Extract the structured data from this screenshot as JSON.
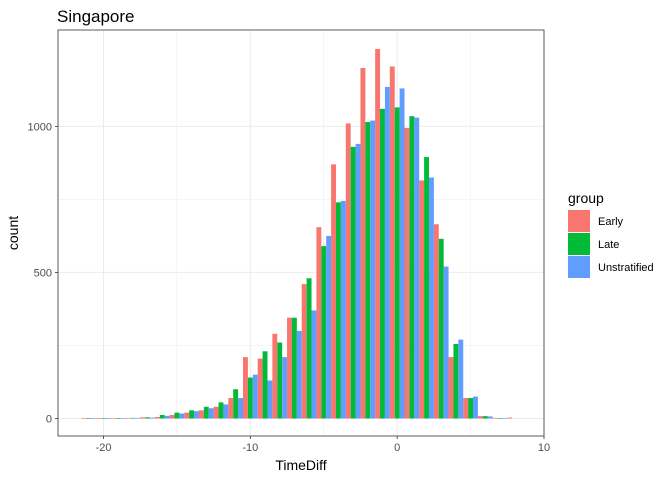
{
  "chart_data": {
    "type": "bar",
    "title": "Singapore",
    "xlabel": "TimeDiff",
    "ylabel": "count",
    "xlim": [
      -23.1,
      10
    ],
    "ylim": [
      -60,
      1330
    ],
    "xticks": [
      -20,
      -10,
      0,
      10
    ],
    "yticks": [
      0,
      500,
      1000
    ],
    "bin_width": 1,
    "grid": true,
    "legend_title": "group",
    "legend_position": "right",
    "x": [
      -21,
      -20,
      -19,
      -18,
      -17,
      -16,
      -15,
      -14,
      -13,
      -12,
      -11,
      -10,
      -9,
      -8,
      -7,
      -6,
      -5,
      -4,
      -3,
      -2,
      -1,
      0,
      1,
      2,
      3,
      4,
      5,
      6,
      7,
      8
    ],
    "series": [
      {
        "name": "Early",
        "color": "#F8766D",
        "values": [
          1,
          1,
          2,
          2,
          4,
          5,
          12,
          20,
          28,
          40,
          70,
          210,
          205,
          290,
          345,
          460,
          655,
          870,
          1010,
          1200,
          1265,
          1205,
          995,
          815,
          665,
          210,
          70,
          8,
          2,
          3
        ]
      },
      {
        "name": "Late",
        "color": "#00BA38",
        "values": [
          1,
          1,
          1,
          2,
          4,
          12,
          20,
          28,
          40,
          55,
          100,
          140,
          230,
          260,
          345,
          480,
          590,
          740,
          930,
          1015,
          1060,
          1065,
          1035,
          895,
          615,
          255,
          70,
          8,
          1,
          0
        ]
      },
      {
        "name": "Unstratified",
        "color": "#619CFF",
        "values": [
          1,
          1,
          1,
          2,
          3,
          9,
          17,
          25,
          35,
          48,
          70,
          150,
          130,
          210,
          300,
          370,
          625,
          745,
          940,
          1020,
          1135,
          1130,
          1030,
          825,
          520,
          270,
          75,
          7,
          1,
          0
        ]
      }
    ]
  }
}
